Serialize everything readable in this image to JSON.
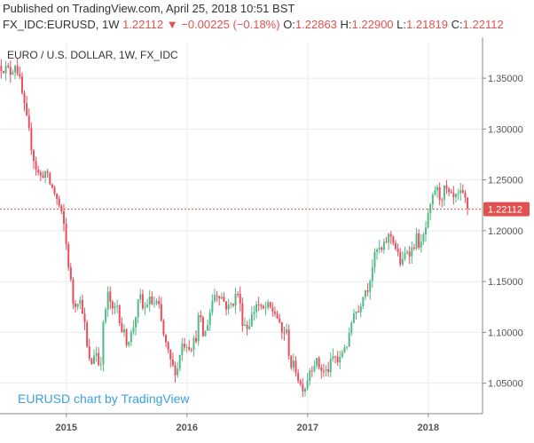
{
  "header": {
    "published": "Published on TradingView.com, April 25, 2018 10:51 BST",
    "symbol": "FX_IDC:EURUSD, 1W",
    "last": "1.22112",
    "change_arrow": "▼",
    "change": "−0.00225 (−0.18%)",
    "open_label": "O:",
    "open": "1.22863",
    "high_label": "H:",
    "high": "1.22900",
    "low_label": "L:",
    "low": "1.21819",
    "close_label": "C:",
    "close": "1.22112"
  },
  "chart_data": {
    "type": "candlestick",
    "title": "EURO / U.S. DOLLAR, 1W, FX_IDC",
    "watermark": "EURUSD chart by TradingView",
    "y_ticks": [
      1.05,
      1.1,
      1.15,
      1.2,
      1.25,
      1.3,
      1.35
    ],
    "y_tick_labels": [
      "1.05000",
      "1.10000",
      "1.15000",
      "1.20000",
      "1.25000",
      "1.30000",
      "1.35000"
    ],
    "x_ticks": [
      2015,
      2016,
      2017,
      2018
    ],
    "x_tick_labels": [
      "2015",
      "2016",
      "2017",
      "2018"
    ],
    "ylim": [
      1.02,
      1.385
    ],
    "xlim": [
      2014.45,
      2018.45
    ],
    "last_price": 1.22112,
    "last_price_label": "1.22112",
    "colors": {
      "up": "#53b987",
      "down": "#eb4d5c",
      "last_line": "#e0524f",
      "grid": "#e8ecef",
      "axis_text": "#555555",
      "watermark": "#3c9fe0"
    },
    "anchors": [
      [
        2014.46,
        1.362
      ],
      [
        2014.54,
        1.356
      ],
      [
        2014.58,
        1.366
      ],
      [
        2014.62,
        1.343
      ],
      [
        2014.66,
        1.315
      ],
      [
        2014.7,
        1.29
      ],
      [
        2014.74,
        1.265
      ],
      [
        2014.78,
        1.252
      ],
      [
        2014.82,
        1.259
      ],
      [
        2014.86,
        1.247
      ],
      [
        2014.9,
        1.238
      ],
      [
        2014.94,
        1.224
      ],
      [
        2014.98,
        1.205
      ],
      [
        2015.02,
        1.165
      ],
      [
        2015.06,
        1.126
      ],
      [
        2015.1,
        1.135
      ],
      [
        2015.14,
        1.121
      ],
      [
        2015.17,
        1.085
      ],
      [
        2015.2,
        1.065
      ],
      [
        2015.24,
        1.085
      ],
      [
        2015.28,
        1.063
      ],
      [
        2015.31,
        1.112
      ],
      [
        2015.35,
        1.14
      ],
      [
        2015.38,
        1.118
      ],
      [
        2015.42,
        1.128
      ],
      [
        2015.46,
        1.103
      ],
      [
        2015.5,
        1.092
      ],
      [
        2015.54,
        1.098
      ],
      [
        2015.58,
        1.12
      ],
      [
        2015.61,
        1.135
      ],
      [
        2015.64,
        1.12
      ],
      [
        2015.68,
        1.132
      ],
      [
        2015.72,
        1.128
      ],
      [
        2015.76,
        1.128
      ],
      [
        2015.8,
        1.1
      ],
      [
        2015.84,
        1.08
      ],
      [
        2015.88,
        1.065
      ],
      [
        2015.92,
        1.063
      ],
      [
        2015.95,
        1.088
      ],
      [
        2015.99,
        1.09
      ],
      [
        2016.03,
        1.087
      ],
      [
        2016.07,
        1.092
      ],
      [
        2016.1,
        1.118
      ],
      [
        2016.14,
        1.093
      ],
      [
        2016.18,
        1.115
      ],
      [
        2016.22,
        1.137
      ],
      [
        2016.26,
        1.14
      ],
      [
        2016.3,
        1.132
      ],
      [
        2016.34,
        1.123
      ],
      [
        2016.38,
        1.13
      ],
      [
        2016.42,
        1.14
      ],
      [
        2016.46,
        1.112
      ],
      [
        2016.5,
        1.105
      ],
      [
        2016.54,
        1.117
      ],
      [
        2016.58,
        1.13
      ],
      [
        2016.62,
        1.12
      ],
      [
        2016.66,
        1.125
      ],
      [
        2016.7,
        1.122
      ],
      [
        2016.74,
        1.119
      ],
      [
        2016.78,
        1.098
      ],
      [
        2016.82,
        1.103
      ],
      [
        2016.86,
        1.068
      ],
      [
        2016.9,
        1.065
      ],
      [
        2016.94,
        1.048
      ],
      [
        2016.98,
        1.047
      ],
      [
        2017.02,
        1.065
      ],
      [
        2017.06,
        1.072
      ],
      [
        2017.1,
        1.066
      ],
      [
        2017.14,
        1.06
      ],
      [
        2017.18,
        1.065
      ],
      [
        2017.22,
        1.078
      ],
      [
        2017.26,
        1.068
      ],
      [
        2017.3,
        1.087
      ],
      [
        2017.34,
        1.09
      ],
      [
        2017.38,
        1.123
      ],
      [
        2017.42,
        1.12
      ],
      [
        2017.46,
        1.14
      ],
      [
        2017.5,
        1.145
      ],
      [
        2017.54,
        1.168
      ],
      [
        2017.58,
        1.182
      ],
      [
        2017.62,
        1.179
      ],
      [
        2017.66,
        1.193
      ],
      [
        2017.7,
        1.196
      ],
      [
        2017.74,
        1.178
      ],
      [
        2017.78,
        1.165
      ],
      [
        2017.82,
        1.182
      ],
      [
        2017.86,
        1.18
      ],
      [
        2017.9,
        1.193
      ],
      [
        2017.94,
        1.184
      ],
      [
        2017.98,
        1.203
      ],
      [
        2018.02,
        1.222
      ],
      [
        2018.06,
        1.243
      ],
      [
        2018.1,
        1.232
      ],
      [
        2018.14,
        1.241
      ],
      [
        2018.18,
        1.232
      ],
      [
        2018.22,
        1.23
      ],
      [
        2018.26,
        1.235
      ],
      [
        2018.3,
        1.232
      ],
      [
        2018.33,
        1.221
      ]
    ]
  }
}
